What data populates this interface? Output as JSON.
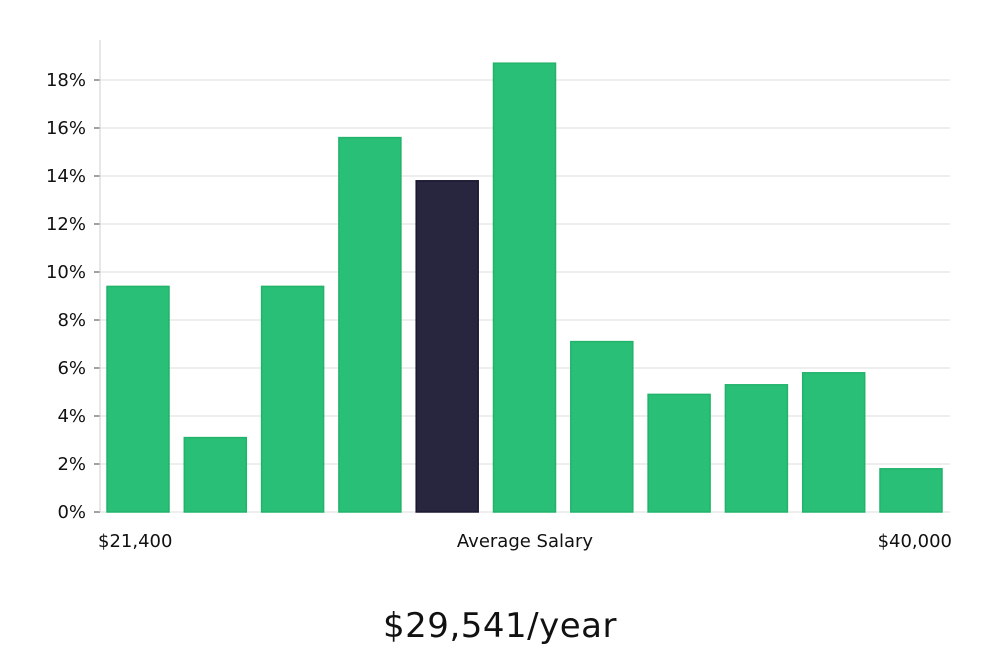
{
  "chart_data": {
    "type": "bar",
    "title": "",
    "xlabel": "Average Salary",
    "ylabel": "",
    "x_start_label": "$21,400",
    "x_end_label": "$40,000",
    "ylim": [
      0,
      19.5
    ],
    "yticks": [
      0,
      2,
      4,
      6,
      8,
      10,
      12,
      14,
      16,
      18
    ],
    "ytick_labels": [
      "0%",
      "2%",
      "4%",
      "6%",
      "8%",
      "10%",
      "12%",
      "14%",
      "16%",
      "18%"
    ],
    "values": [
      9.4,
      3.1,
      9.4,
      15.6,
      13.8,
      18.7,
      7.1,
      4.9,
      5.3,
      5.8,
      1.8
    ],
    "highlight_index": 4,
    "grid": true,
    "colors": {
      "bar": "#2abf76",
      "highlight": "#28253f"
    }
  },
  "summary": {
    "salary": "$29,541/year"
  }
}
